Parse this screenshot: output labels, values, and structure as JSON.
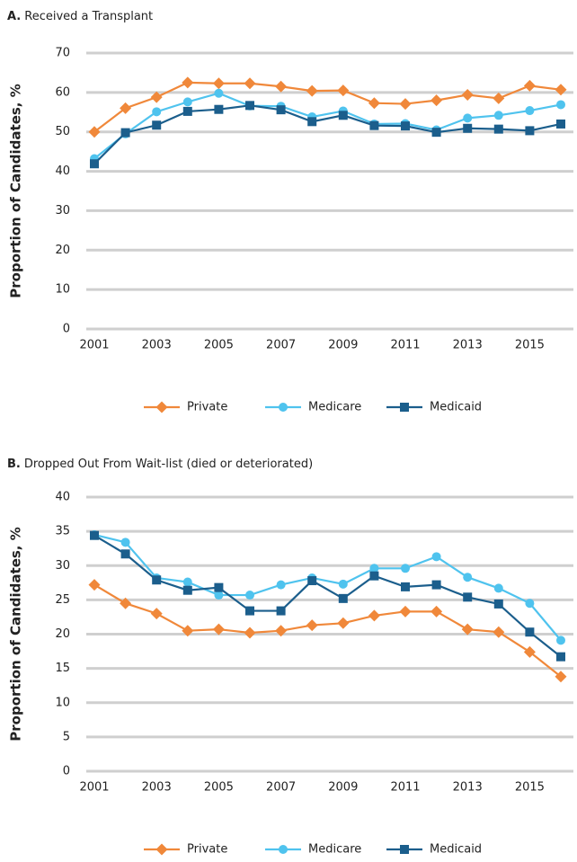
{
  "chart_data": [
    {
      "type": "line",
      "panel": "A.",
      "title": "Received a Transplant",
      "ylabel": "Proportion of Candidates, %",
      "x": [
        2001,
        2002,
        2003,
        2004,
        2005,
        2006,
        2007,
        2008,
        2009,
        2010,
        2011,
        2012,
        2013,
        2014,
        2015,
        2016
      ],
      "xlim": [
        2001,
        2016
      ],
      "xticks": [
        2001,
        2003,
        2005,
        2007,
        2009,
        2011,
        2013,
        2015
      ],
      "ylim": [
        0,
        70
      ],
      "yticks": [
        0,
        10,
        20,
        30,
        40,
        50,
        60,
        70
      ],
      "grid": true,
      "legend": "bottom",
      "series": [
        {
          "name": "Private",
          "color": "#f0883a",
          "marker": "diamond",
          "values": [
            50,
            56,
            58.8,
            62.5,
            62.3,
            62.3,
            61.5,
            60.4,
            60.5,
            57.3,
            57.1,
            58,
            59.4,
            58.5,
            61.7,
            60.7
          ]
        },
        {
          "name": "Medicare",
          "color": "#4fc3ee",
          "marker": "circle",
          "values": [
            43.2,
            49.5,
            55.1,
            57.6,
            59.8,
            56.6,
            56.5,
            53.8,
            55.3,
            52,
            52.1,
            50.5,
            53.5,
            54.2,
            55.4,
            56.9
          ]
        },
        {
          "name": "Medicaid",
          "color": "#1b5e8c",
          "marker": "square",
          "values": [
            41.9,
            49.8,
            51.7,
            55.2,
            55.7,
            56.7,
            55.6,
            52.6,
            54.2,
            51.6,
            51.5,
            49.9,
            50.9,
            50.7,
            50.3,
            52
          ]
        }
      ]
    },
    {
      "type": "line",
      "panel": "B.",
      "title": "Dropped Out From Wait-list (died or deteriorated)",
      "ylabel": "Proportion of Candidates, %",
      "x": [
        2001,
        2002,
        2003,
        2004,
        2005,
        2006,
        2007,
        2008,
        2009,
        2010,
        2011,
        2012,
        2013,
        2014,
        2015,
        2016
      ],
      "xlim": [
        2001,
        2016
      ],
      "xticks": [
        2001,
        2003,
        2005,
        2007,
        2009,
        2011,
        2013,
        2015
      ],
      "ylim": [
        0,
        40
      ],
      "yticks": [
        0,
        5,
        10,
        15,
        20,
        25,
        30,
        35,
        40
      ],
      "grid": true,
      "legend": "bottom",
      "series": [
        {
          "name": "Private",
          "color": "#f0883a",
          "marker": "diamond",
          "values": [
            27.2,
            24.5,
            23,
            20.5,
            20.7,
            20.2,
            20.5,
            21.3,
            21.6,
            22.7,
            23.3,
            23.3,
            20.7,
            20.3,
            17.4,
            13.8
          ]
        },
        {
          "name": "Medicare",
          "color": "#4fc3ee",
          "marker": "circle",
          "values": [
            34.5,
            33.4,
            28.2,
            27.6,
            25.7,
            25.7,
            27.2,
            28.2,
            27.3,
            29.6,
            29.6,
            31.3,
            28.3,
            26.7,
            24.5,
            19.1
          ]
        },
        {
          "name": "Medicaid",
          "color": "#1b5e8c",
          "marker": "square",
          "values": [
            34.4,
            31.7,
            27.9,
            26.4,
            26.8,
            23.4,
            23.4,
            27.8,
            25.2,
            28.5,
            26.9,
            27.2,
            25.4,
            24.4,
            20.3,
            16.7
          ]
        }
      ]
    }
  ]
}
